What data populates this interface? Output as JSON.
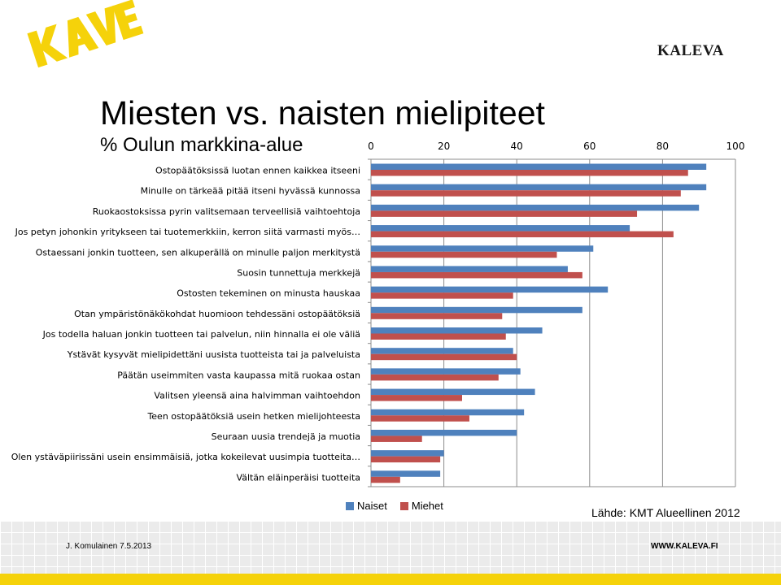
{
  "brand": {
    "logo_icon": "kave-logo-icon",
    "name": "KALEVA",
    "logo_color": "#f5d20a"
  },
  "title": "Miesten vs. naisten mielipiteet",
  "subtitle": "% Oulun markkina-alue",
  "source": "Lähde: KMT Alueellinen 2012",
  "footer": {
    "left": "J. Komulainen 7.5.2013",
    "right": "WWW.KALEVA.FI"
  },
  "chart_data": {
    "type": "bar",
    "orientation": "horizontal",
    "categories": [
      "Ostopäätöksissä luotan ennen kaikkea itseeni",
      "Minulle on tärkeää pitää itseni hyvässä kunnossa",
      "Ruokaostoksissa pyrin valitsemaan terveellisiä vaihtoehtoja",
      "Jos petyn johonkin yritykseen tai tuotemerkkiin, kerron siitä varmasti myös…",
      "Ostaessani jonkin tuotteen, sen alkuperällä on minulle paljon merkitystä",
      "Suosin tunnettuja merkkejä",
      "Ostosten tekeminen on minusta hauskaa",
      "Otan ympäristönäkökohdat huomioon tehdessäni ostopäätöksiä",
      "Jos todella haluan jonkin tuotteen tai palvelun, niin hinnalla ei ole väliä",
      "Ystävät kysyvät mielipidettäni uusista tuotteista tai ja palveluista",
      "Päätän useimmiten vasta kaupassa mitä ruokaa ostan",
      "Valitsen yleensä aina halvimman vaihtoehdon",
      "Teen ostopäätöksiä usein hetken mielijohteesta",
      "Seuraan uusia trendejä ja muotia",
      "Olen ystäväpiirissäni usein ensimmäisiä, jotka kokeilevat uusimpia tuotteita…",
      "Vältän eläinperäisi tuotteita"
    ],
    "series": [
      {
        "name": "Naiset",
        "color": "#4f81bd",
        "values": [
          92,
          92,
          90,
          71,
          61,
          54,
          65,
          58,
          47,
          39,
          41,
          45,
          42,
          40,
          20,
          19
        ]
      },
      {
        "name": "Miehet",
        "color": "#c0504d",
        "values": [
          87,
          85,
          73,
          83,
          51,
          58,
          39,
          36,
          37,
          40,
          35,
          25,
          27,
          14,
          19,
          8
        ]
      }
    ],
    "xlim": [
      0,
      100
    ],
    "xticks": [
      "0",
      "20",
      "40",
      "60",
      "80",
      "100"
    ],
    "grid": true,
    "legend": "bottom"
  }
}
